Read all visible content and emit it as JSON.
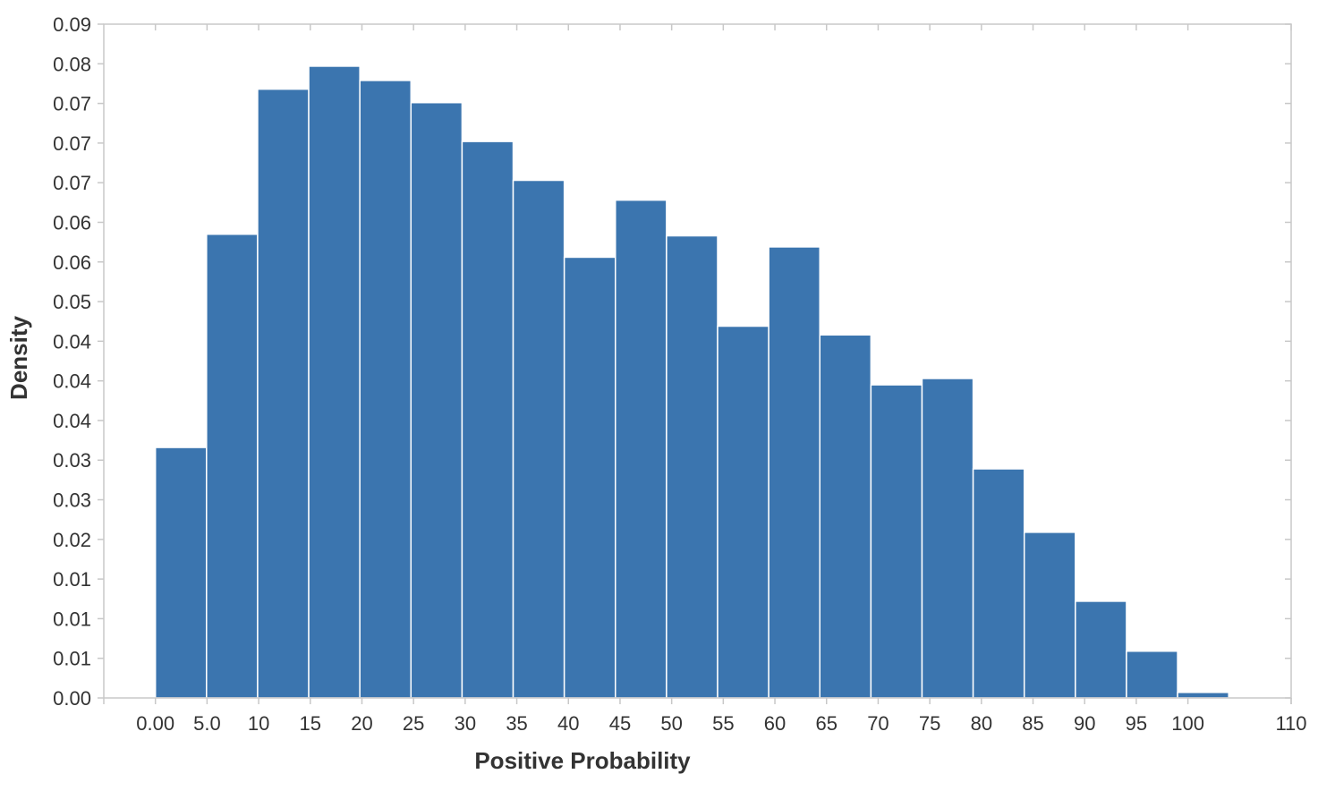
{
  "chart_data": {
    "type": "bar",
    "subtype": "histogram",
    "xlabel": "Positive Probability",
    "ylabel": "Density",
    "bar_color": "#3b75af",
    "axis_color": "#c8c8c8",
    "text_color": "#333333",
    "grid": false,
    "xlim": [
      -5,
      110
    ],
    "ylim": [
      0,
      0.085
    ],
    "x_tick_values": [
      0,
      5,
      10,
      15,
      20,
      25,
      30,
      35,
      40,
      45,
      50,
      55,
      60,
      65,
      70,
      75,
      80,
      85,
      90,
      95,
      100,
      110
    ],
    "x_tick_labels": [
      "0.00",
      "5.0",
      "10",
      "15",
      "20",
      "25",
      "30",
      "35",
      "40",
      "45",
      "50",
      "55",
      "60",
      "65",
      "70",
      "75",
      "80",
      "85",
      "90",
      "95",
      "100",
      "110"
    ],
    "y_tick_values": [
      0,
      0.005,
      0.01,
      0.015,
      0.02,
      0.025,
      0.03,
      0.035,
      0.04,
      0.045,
      0.05,
      0.055,
      0.06,
      0.065,
      0.07,
      0.075,
      0.08,
      0.085
    ],
    "y_tick_labels": [
      "0.00",
      "0.01",
      "0.01",
      "0.01",
      "0.02",
      "0.03",
      "0.03",
      "0.04",
      "0.04",
      "0.04",
      "0.05",
      "0.06",
      "0.06",
      "0.07",
      "0.07",
      "0.07",
      "0.08",
      "0.09"
    ],
    "bins": [
      {
        "x0": 0,
        "x1": 4.95,
        "value": 0.0316
      },
      {
        "x0": 4.95,
        "x1": 9.9,
        "value": 0.0585
      },
      {
        "x0": 9.9,
        "x1": 14.85,
        "value": 0.0768
      },
      {
        "x0": 14.85,
        "x1": 19.8,
        "value": 0.0797
      },
      {
        "x0": 19.8,
        "x1": 24.75,
        "value": 0.0779
      },
      {
        "x0": 24.75,
        "x1": 29.7,
        "value": 0.0751
      },
      {
        "x0": 29.7,
        "x1": 34.65,
        "value": 0.0702
      },
      {
        "x0": 34.65,
        "x1": 39.6,
        "value": 0.0653
      },
      {
        "x0": 39.6,
        "x1": 44.55,
        "value": 0.0556
      },
      {
        "x0": 44.55,
        "x1": 49.5,
        "value": 0.0628
      },
      {
        "x0": 49.5,
        "x1": 54.45,
        "value": 0.0583
      },
      {
        "x0": 54.45,
        "x1": 59.4,
        "value": 0.0469
      },
      {
        "x0": 59.4,
        "x1": 64.35,
        "value": 0.0569
      },
      {
        "x0": 64.35,
        "x1": 69.3,
        "value": 0.0458
      },
      {
        "x0": 69.3,
        "x1": 74.25,
        "value": 0.0395
      },
      {
        "x0": 74.25,
        "x1": 79.2,
        "value": 0.0403
      },
      {
        "x0": 79.2,
        "x1": 84.15,
        "value": 0.0289
      },
      {
        "x0": 84.15,
        "x1": 89.1,
        "value": 0.0209
      },
      {
        "x0": 89.1,
        "x1": 94.05,
        "value": 0.0122
      },
      {
        "x0": 94.05,
        "x1": 99.0,
        "value": 0.0059
      },
      {
        "x0": 99.0,
        "x1": 103.95,
        "value": 0.0007
      }
    ]
  }
}
